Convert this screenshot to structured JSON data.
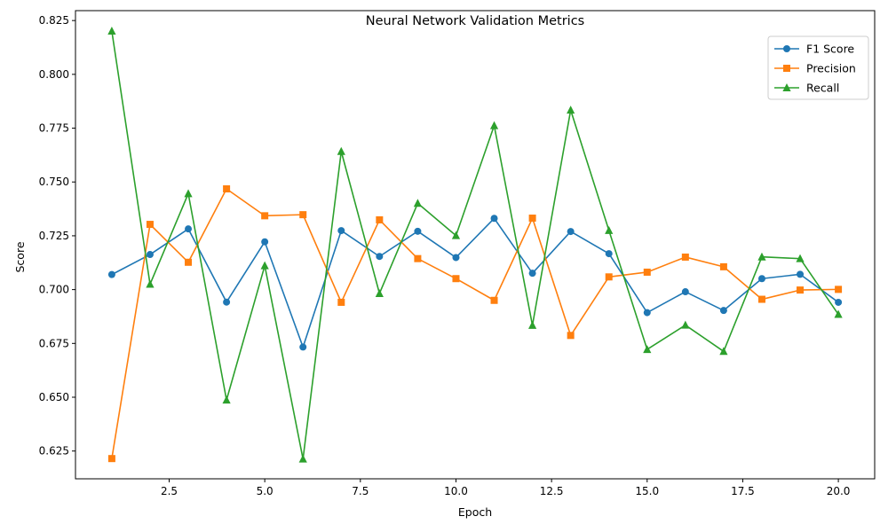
{
  "chart_data": {
    "type": "line",
    "title": "Neural Network Validation Metrics",
    "xlabel": "Epoch",
    "ylabel": "Score",
    "xlim": [
      0.05,
      20.95
    ],
    "ylim": [
      0.6121,
      0.8296
    ],
    "x_ticks": [
      2.5,
      5.0,
      7.5,
      10.0,
      12.5,
      15.0,
      17.5,
      20.0
    ],
    "x_tick_labels": [
      "2.5",
      "5.0",
      "7.5",
      "10.0",
      "12.5",
      "15.0",
      "17.5",
      "20.0"
    ],
    "y_ticks": [
      0.625,
      0.65,
      0.675,
      0.7,
      0.725,
      0.75,
      0.775,
      0.8,
      0.825
    ],
    "y_tick_labels": [
      "0.625",
      "0.650",
      "0.675",
      "0.700",
      "0.725",
      "0.750",
      "0.775",
      "0.800",
      "0.825"
    ],
    "grid": false,
    "legend_position": "top-right",
    "x": [
      1,
      2,
      3,
      4,
      5,
      6,
      7,
      8,
      9,
      10,
      11,
      12,
      13,
      14,
      15,
      16,
      17,
      18,
      19,
      20
    ],
    "series": [
      {
        "name": "F1 Score",
        "color": "#1f77b4",
        "marker": "circle",
        "values": [
          0.707,
          0.7163,
          0.7282,
          0.6942,
          0.7222,
          0.6733,
          0.7274,
          0.7154,
          0.7271,
          0.7149,
          0.7331,
          0.7076,
          0.727,
          0.7167,
          0.6893,
          0.699,
          0.6903,
          0.7051,
          0.7071,
          0.6941
        ]
      },
      {
        "name": "Precision",
        "color": "#ff7f0e",
        "marker": "square",
        "values": [
          0.6215,
          0.7303,
          0.7127,
          0.7468,
          0.7343,
          0.7348,
          0.6941,
          0.7324,
          0.7144,
          0.7051,
          0.695,
          0.7332,
          0.6787,
          0.7059,
          0.7081,
          0.7151,
          0.7106,
          0.6955,
          0.6998,
          0.7001
        ]
      },
      {
        "name": "Recall",
        "color": "#2ca02c",
        "marker": "triangle",
        "values": [
          0.8201,
          0.7025,
          0.7446,
          0.6487,
          0.7111,
          0.6213,
          0.7642,
          0.6982,
          0.7401,
          0.7251,
          0.7762,
          0.6834,
          0.7834,
          0.7275,
          0.6722,
          0.6835,
          0.6713,
          0.7152,
          0.7144,
          0.6885
        ]
      }
    ]
  }
}
